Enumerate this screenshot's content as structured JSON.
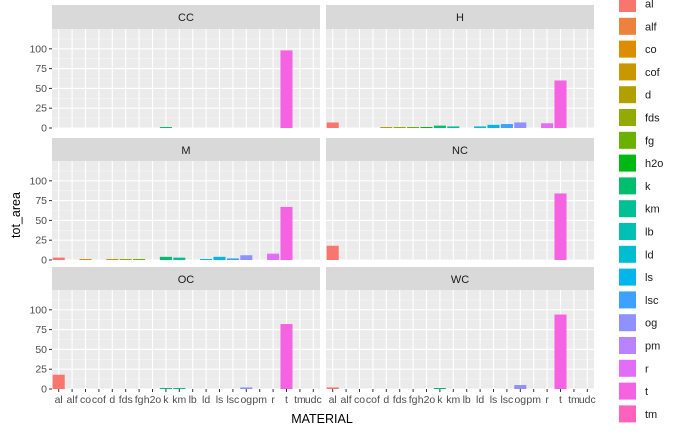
{
  "chart_data": {
    "type": "bar",
    "xlabel": "MATERIAL",
    "ylabel": "tot_area",
    "ylim": [
      0,
      125
    ],
    "yticks": [
      0,
      25,
      50,
      75,
      100
    ],
    "grid": true,
    "legend_position": "right",
    "categories": [
      "al",
      "alf",
      "co",
      "cof",
      "d",
      "fds",
      "fg",
      "h2o",
      "k",
      "km",
      "lb",
      "ld",
      "ls",
      "lsc",
      "og",
      "pm",
      "r",
      "t",
      "tm",
      "udc"
    ],
    "x_tick_labels": [
      "al",
      "alf",
      "co",
      "cof",
      "d",
      "fds",
      "fg",
      "h2o",
      "k",
      "km",
      "lb",
      "ld",
      "ls",
      "lsc",
      "og",
      "pm",
      "r",
      "t",
      "tm",
      "udc"
    ],
    "colors": {
      "al": "#F8766D",
      "alf": "#EC823C",
      "co": "#DD8D00",
      "cof": "#C99800",
      "d": "#B0A100",
      "fds": "#93AA00",
      "fg": "#6BB100",
      "h2o": "#00B813",
      "k": "#00BE6D",
      "km": "#00C094",
      "lb": "#00C0B4",
      "ld": "#00BDD0",
      "ls": "#00B6EB",
      "lsc": "#3DA1FF",
      "og": "#8F91FF",
      "pm": "#B983FF",
      "r": "#E26EF7",
      "t": "#F563E3",
      "tm": "#FF62BC",
      "udc": "#FF6C91"
    },
    "legend_entries": [
      "al",
      "alf",
      "co",
      "cof",
      "d",
      "fds",
      "fg",
      "h2o",
      "k",
      "km",
      "lb",
      "ld",
      "ls",
      "lsc",
      "og",
      "pm",
      "r",
      "t",
      "tm"
    ],
    "panels": [
      {
        "name": "CC",
        "values": {
          "k": 1,
          "t": 98
        }
      },
      {
        "name": "H",
        "values": {
          "al": 7,
          "d": 1,
          "fds": 1,
          "fg": 1,
          "h2o": 1,
          "k": 3,
          "km": 2,
          "ld": 2,
          "ls": 4,
          "lsc": 5,
          "og": 7,
          "r": 6,
          "t": 60
        }
      },
      {
        "name": "M",
        "values": {
          "al": 3,
          "co": 1,
          "d": 1,
          "fds": 1,
          "fg": 1,
          "k": 4,
          "km": 3,
          "ld": 1,
          "ls": 4,
          "lsc": 2,
          "og": 6,
          "r": 8,
          "t": 67
        }
      },
      {
        "name": "NC",
        "values": {
          "al": 18,
          "t": 84
        }
      },
      {
        "name": "OC",
        "values": {
          "al": 18,
          "k": 1,
          "km": 1,
          "og": 2,
          "t": 82
        }
      },
      {
        "name": "WC",
        "values": {
          "al": 2,
          "k": 1,
          "og": 5,
          "t": 94
        }
      }
    ]
  }
}
